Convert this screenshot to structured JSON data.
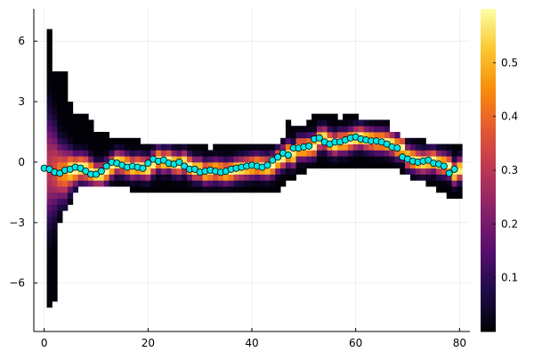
{
  "chart_data": {
    "type": "heatmap",
    "title": "",
    "xlabel": "",
    "ylabel": "",
    "xlim": [
      -2,
      82
    ],
    "ylim": [
      -8.4,
      7.6
    ],
    "x_ticks": [
      {
        "value": 0,
        "label": "0"
      },
      {
        "value": 20,
        "label": "20"
      },
      {
        "value": 40,
        "label": "40"
      },
      {
        "value": 60,
        "label": "60"
      },
      {
        "value": 80,
        "label": "80"
      }
    ],
    "y_ticks": [
      {
        "value": 6,
        "label": "6"
      },
      {
        "value": 3,
        "label": "3"
      },
      {
        "value": 0,
        "label": "0"
      },
      {
        "value": -3,
        "label": "−3"
      },
      {
        "value": -6,
        "label": "−6"
      }
    ],
    "grid": true,
    "colorbar": {
      "colormap": "inferno",
      "range": [
        0,
        0.6
      ],
      "ticks": [
        {
          "value": 0.1,
          "label": "0.1"
        },
        {
          "value": 0.2,
          "label": "0.2"
        },
        {
          "value": 0.3,
          "label": "0.3"
        },
        {
          "value": 0.4,
          "label": "0.4"
        },
        {
          "value": 0.5,
          "label": "0.5"
        }
      ]
    },
    "heatmap": {
      "x_range": [
        0.5,
        80.5
      ],
      "bin_width": 0.3,
      "support_top": [
        6.6,
        4.5,
        4.5,
        4.5,
        3.0,
        2.5,
        2.3,
        2.3,
        2.0,
        1.5,
        1.5,
        1.5,
        1.2,
        1.2,
        1.2,
        1.2,
        1.2,
        1.2,
        1.0,
        1.0,
        1.0,
        1.0,
        1.0,
        1.0,
        0.8,
        0.8,
        0.8,
        0.8,
        0.8,
        0.8,
        0.8,
        0.6,
        0.8,
        1.0,
        1.0,
        1.0,
        1.0,
        1.0,
        1.0,
        1.0,
        1.0,
        1.0,
        1.0,
        1.0,
        1.0,
        1.2,
        2.0,
        1.8,
        1.8,
        1.8,
        2.0,
        2.4,
        2.4,
        2.4,
        2.4,
        2.4,
        2.0,
        2.4,
        2.4,
        2.4,
        2.0,
        2.0,
        2.0,
        2.0,
        2.0,
        2.0,
        1.5,
        1.5,
        1.2,
        1.2,
        1.2,
        1.2,
        1.2,
        1.0,
        1.0,
        1.0,
        1.0,
        1.0,
        0.8,
        1.0
      ],
      "support_bottom": [
        -7.3,
        -6.8,
        -3.0,
        -2.5,
        -2.0,
        -1.5,
        -1.3,
        -1.3,
        -1.3,
        -1.3,
        -1.3,
        -1.3,
        -1.3,
        -1.3,
        -1.3,
        -1.3,
        -1.5,
        -1.5,
        -1.5,
        -1.5,
        -1.5,
        -1.5,
        -1.5,
        -1.5,
        -1.5,
        -1.5,
        -1.5,
        -1.5,
        -1.5,
        -1.5,
        -1.5,
        -1.5,
        -1.5,
        -1.5,
        -1.5,
        -1.5,
        -1.5,
        -1.5,
        -1.5,
        -1.5,
        -1.5,
        -1.5,
        -1.5,
        -1.5,
        -1.5,
        -1.3,
        -1.0,
        -0.8,
        -0.5,
        -0.5,
        -0.3,
        -0.3,
        -0.2,
        -0.2,
        -0.2,
        -0.2,
        -0.2,
        -0.2,
        -0.2,
        -0.2,
        -0.2,
        -0.2,
        -0.2,
        -0.2,
        -0.3,
        -0.3,
        -0.3,
        -0.3,
        -0.5,
        -0.5,
        -0.8,
        -1.0,
        -1.0,
        -1.3,
        -1.3,
        -1.5,
        -1.5,
        -1.8,
        -1.8,
        -1.8
      ]
    },
    "series": [
      {
        "type": "scatter",
        "marker_color": "#00e5e5",
        "x": [
          0,
          1,
          2,
          3,
          4,
          5,
          6,
          7,
          8,
          9,
          10,
          11,
          12,
          13,
          14,
          15,
          16,
          17,
          18,
          19,
          20,
          21,
          22,
          23,
          24,
          25,
          26,
          27,
          28,
          29,
          30,
          31,
          32,
          33,
          34,
          35,
          36,
          37,
          38,
          39,
          40,
          41,
          42,
          43,
          44,
          45,
          46,
          47,
          48,
          49,
          50,
          51,
          52,
          53,
          54,
          55,
          56,
          57,
          58,
          59,
          60,
          61,
          62,
          63,
          64,
          65,
          66,
          67,
          68,
          69,
          70,
          71,
          72,
          73,
          74,
          75,
          76,
          77,
          78,
          79
        ],
        "y": [
          -0.3,
          -0.35,
          -0.5,
          -0.55,
          -0.4,
          -0.35,
          -0.25,
          -0.3,
          -0.45,
          -0.6,
          -0.6,
          -0.45,
          -0.2,
          0.0,
          -0.05,
          -0.15,
          -0.25,
          -0.2,
          -0.25,
          -0.3,
          -0.05,
          0.15,
          0.05,
          0.1,
          -0.05,
          -0.1,
          0.0,
          -0.2,
          -0.35,
          -0.35,
          -0.5,
          -0.45,
          -0.4,
          -0.45,
          -0.5,
          -0.45,
          -0.35,
          -0.3,
          -0.25,
          -0.2,
          -0.15,
          -0.2,
          -0.25,
          -0.15,
          0.1,
          0.25,
          0.45,
          0.35,
          0.7,
          0.7,
          0.75,
          0.8,
          1.15,
          1.2,
          1.0,
          0.9,
          1.0,
          1.0,
          1.1,
          1.2,
          1.25,
          1.15,
          1.1,
          1.05,
          1.05,
          1.0,
          0.9,
          0.75,
          0.7,
          0.25,
          0.15,
          0.05,
          0.0,
          0.05,
          0.1,
          -0.05,
          -0.1,
          -0.2,
          -0.55,
          -0.35
        ]
      }
    ]
  }
}
